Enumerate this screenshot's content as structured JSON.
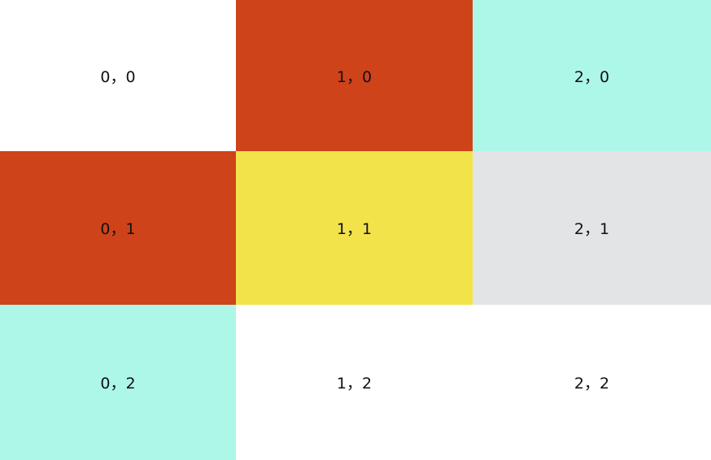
{
  "colors": {
    "white": "#FFFFFF",
    "red": "#CF431B",
    "cyan": "#ADF7E8",
    "yellow": "#F2E34A",
    "gray": "#E3E4E6"
  },
  "cells": [
    {
      "label": "0，0",
      "color": "#FFFFFF"
    },
    {
      "label": "1，0",
      "color": "#CF431B"
    },
    {
      "label": "2，0",
      "color": "#ADF7E8"
    },
    {
      "label": "0，1",
      "color": "#CF431B"
    },
    {
      "label": "1，1",
      "color": "#F2E34A"
    },
    {
      "label": "2，1",
      "color": "#E3E4E6"
    },
    {
      "label": "0，2",
      "color": "#ADF7E8"
    },
    {
      "label": "1，2",
      "color": "#FFFFFF"
    },
    {
      "label": "2，2",
      "color": "#FFFFFF"
    }
  ]
}
